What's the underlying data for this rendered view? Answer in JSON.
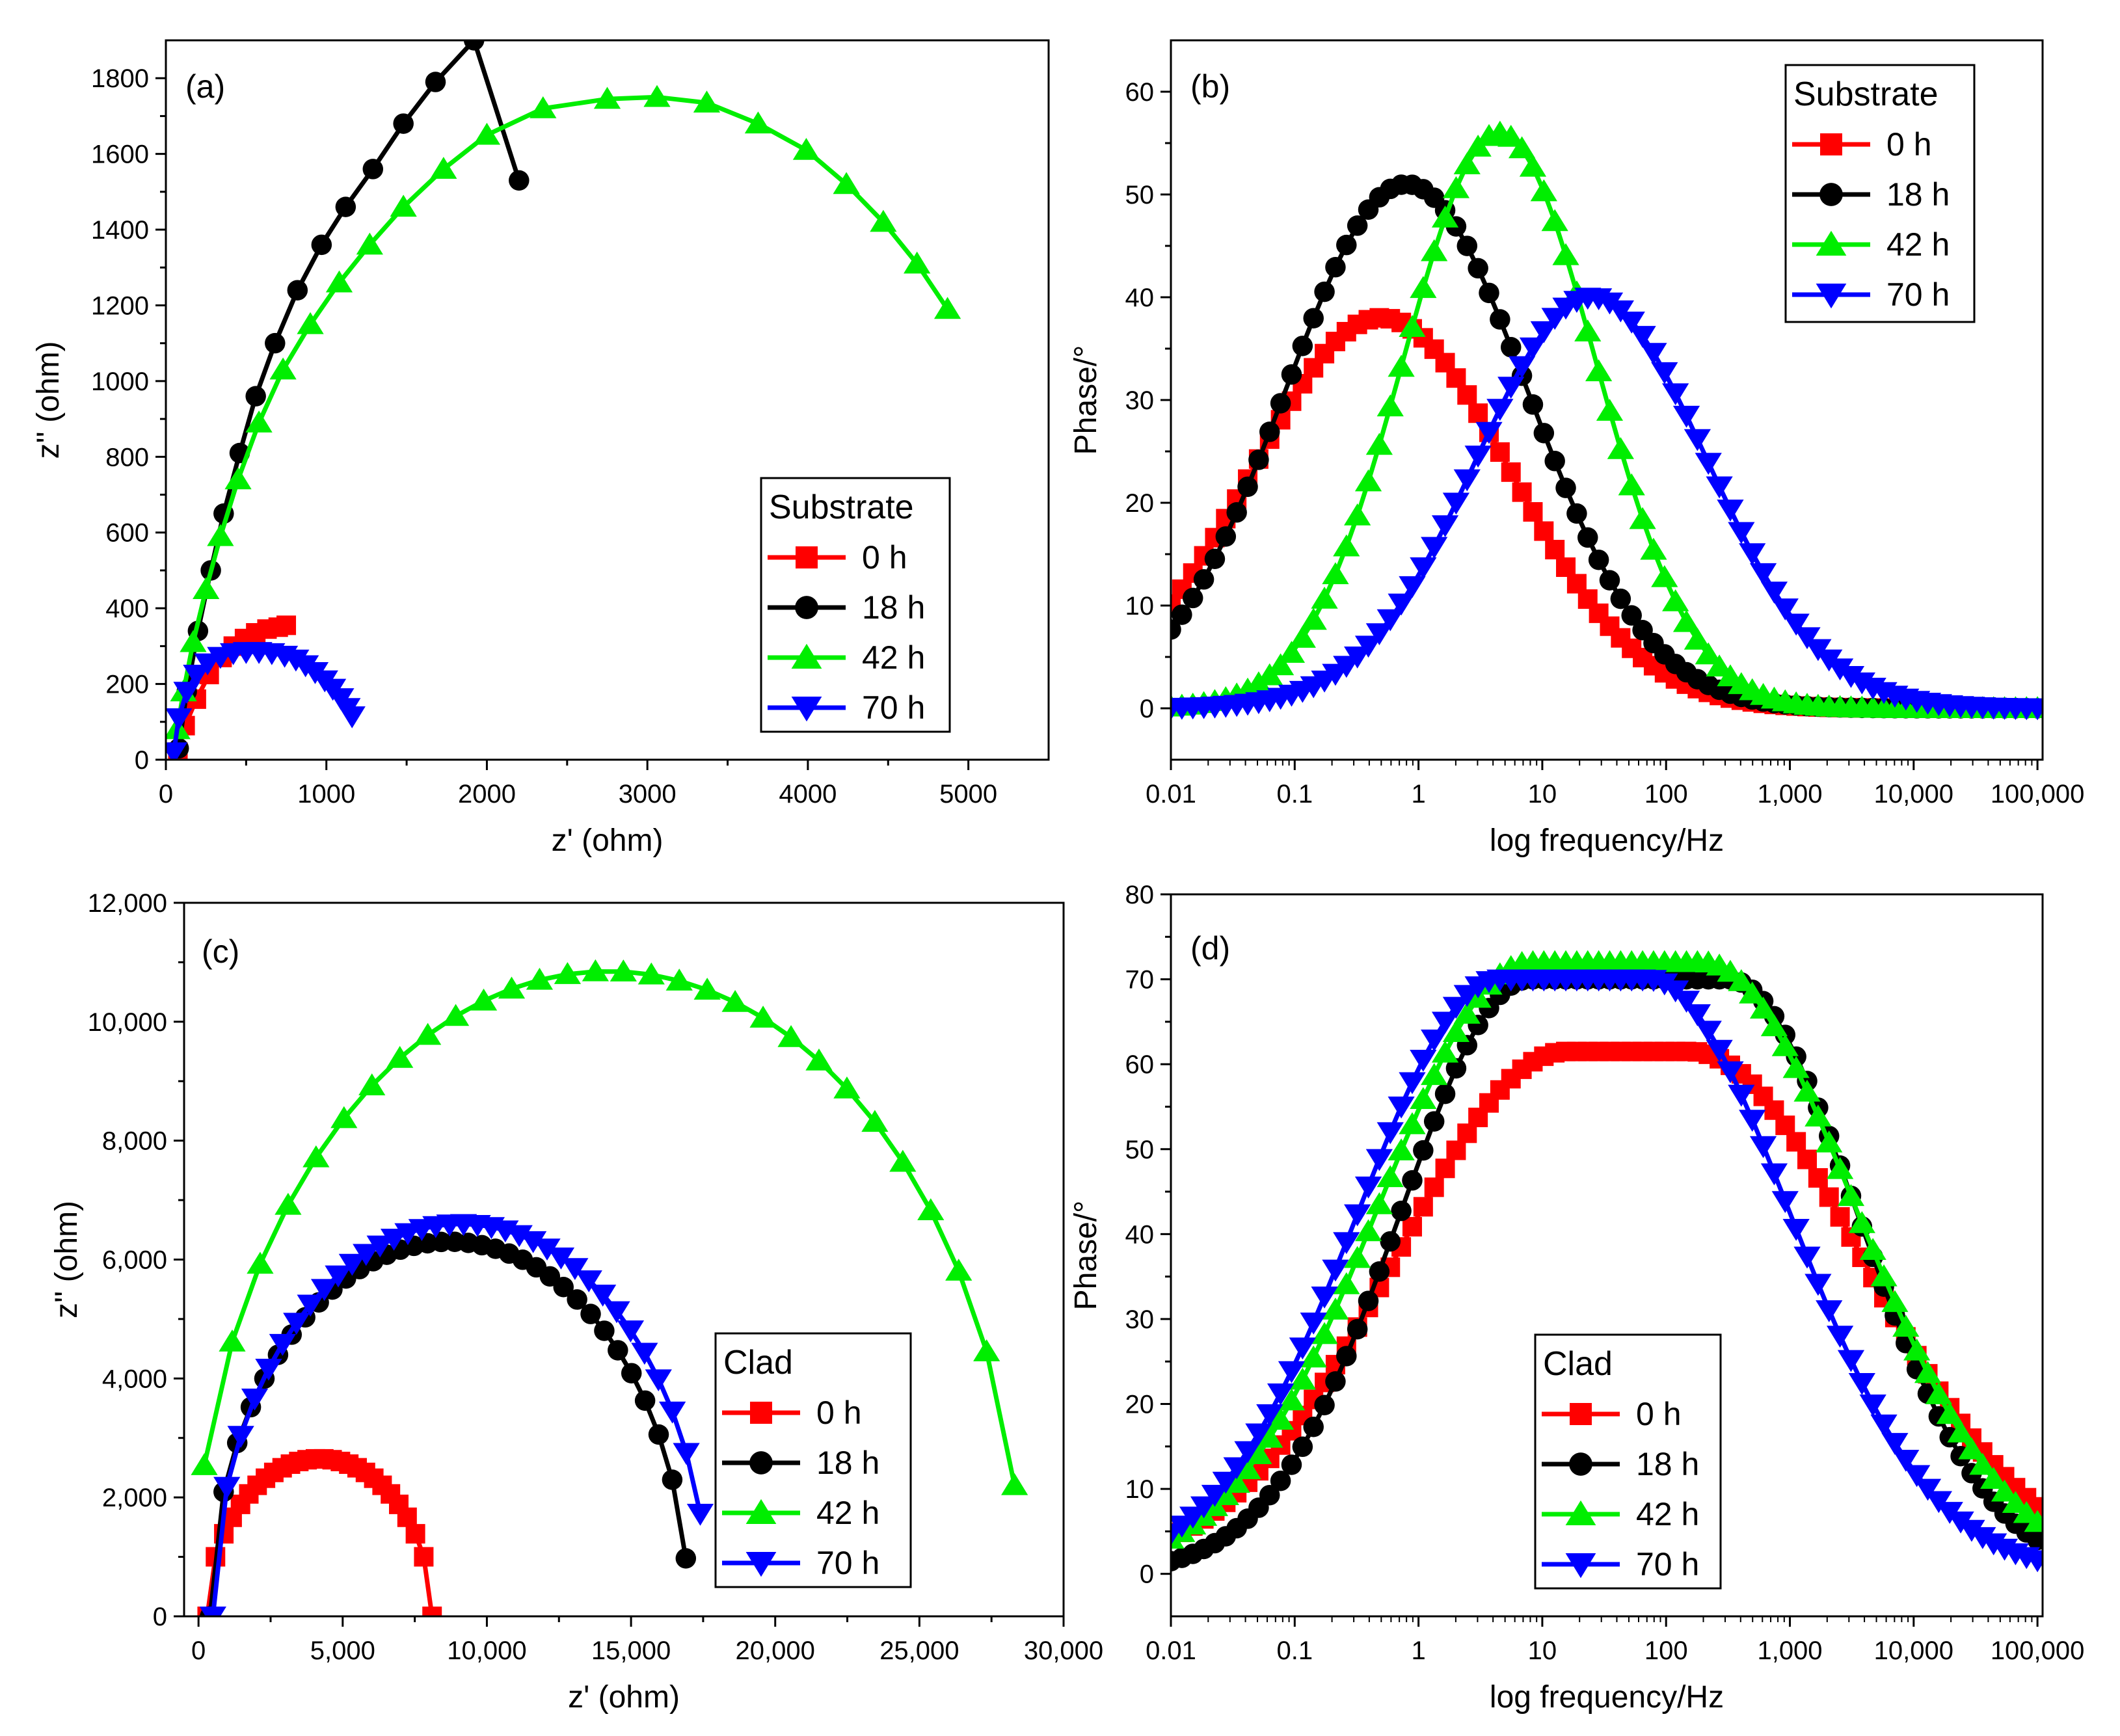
{
  "figure": {
    "panels": [
      "a",
      "b",
      "c",
      "d"
    ]
  },
  "chart_data": [
    {
      "id": "a",
      "type": "scatter",
      "panel_label": "(a)",
      "xlabel": "z' (ohm)",
      "ylabel": "z'' (ohm)",
      "xlim": [
        0,
        5500
      ],
      "ylim": [
        0,
        1900
      ],
      "xticks": [
        0,
        1000,
        2000,
        3000,
        4000,
        5000
      ],
      "xtick_labels": [
        "0",
        "1000",
        "2000",
        "3000",
        "4000",
        "5000"
      ],
      "yticks": [
        0,
        200,
        400,
        600,
        800,
        1000,
        1200,
        1400,
        1600,
        1800
      ],
      "ytick_labels": [
        "0",
        "200",
        "400",
        "600",
        "800",
        "1000",
        "1200",
        "1400",
        "1600",
        "1800"
      ],
      "legend": {
        "title": "Substrate",
        "position": "right",
        "entries": [
          "0 h",
          "18 h",
          "42 h",
          "70 h"
        ]
      },
      "series": [
        {
          "name": "0 h",
          "color": "#ff0000",
          "marker": "square",
          "points": [
            [
              75,
              20
            ],
            [
              120,
              90
            ],
            [
              190,
              160
            ],
            [
              270,
              225
            ],
            [
              350,
              270
            ],
            [
              420,
              300
            ],
            [
              490,
              320
            ],
            [
              560,
              335
            ],
            [
              630,
              345
            ],
            [
              700,
              350
            ],
            [
              750,
              355
            ]
          ]
        },
        {
          "name": "18 h",
          "color": "#000000",
          "marker": "circle",
          "points": [
            [
              80,
              30
            ],
            [
              130,
              180
            ],
            [
              200,
              340
            ],
            [
              280,
              500
            ],
            [
              360,
              650
            ],
            [
              460,
              810
            ],
            [
              560,
              960
            ],
            [
              680,
              1100
            ],
            [
              820,
              1240
            ],
            [
              970,
              1360
            ],
            [
              1120,
              1460
            ],
            [
              1290,
              1560
            ],
            [
              1480,
              1680
            ],
            [
              1680,
              1790
            ],
            [
              1920,
              1900
            ],
            [
              2200,
              1530
            ]
          ]
        },
        {
          "name": "42 h",
          "color": "#00ee00",
          "marker": "triangle-up",
          "points": [
            [
              70,
              80
            ],
            [
              110,
              180
            ],
            [
              170,
              310
            ],
            [
              250,
              450
            ],
            [
              340,
              590
            ],
            [
              450,
              740
            ],
            [
              580,
              890
            ],
            [
              730,
              1030
            ],
            [
              900,
              1150
            ],
            [
              1080,
              1260
            ],
            [
              1270,
              1360
            ],
            [
              1480,
              1460
            ],
            [
              1730,
              1560
            ],
            [
              2000,
              1650
            ],
            [
              2350,
              1720
            ],
            [
              2750,
              1745
            ],
            [
              3060,
              1750
            ],
            [
              3370,
              1735
            ],
            [
              3690,
              1680
            ],
            [
              3990,
              1610
            ],
            [
              4240,
              1520
            ],
            [
              4470,
              1420
            ],
            [
              4680,
              1310
            ],
            [
              4870,
              1190
            ]
          ]
        },
        {
          "name": "70 h",
          "color": "#0000ff",
          "marker": "triangle-down",
          "points": [
            [
              50,
              20
            ],
            [
              80,
              110
            ],
            [
              130,
              180
            ],
            [
              190,
              225
            ],
            [
              260,
              255
            ],
            [
              340,
              272
            ],
            [
              420,
              282
            ],
            [
              500,
              285
            ],
            [
              580,
              285
            ],
            [
              660,
              282
            ],
            [
              740,
              275
            ],
            [
              810,
              265
            ],
            [
              870,
              250
            ],
            [
              930,
              232
            ],
            [
              990,
              210
            ],
            [
              1040,
              188
            ],
            [
              1090,
              163
            ],
            [
              1130,
              137
            ],
            [
              1160,
              115
            ]
          ]
        }
      ]
    },
    {
      "id": "b",
      "type": "scatter",
      "panel_label": "(b)",
      "xlabel": "log frequency/Hz",
      "ylabel": "Phase/°",
      "xscale": "log",
      "xlim": [
        0.01,
        110000
      ],
      "ylim": [
        -5,
        65
      ],
      "xticks": [
        0.01,
        0.1,
        1,
        10,
        100,
        1000,
        10000,
        100000
      ],
      "xtick_labels": [
        "0.01",
        "0.1",
        "1",
        "10",
        "100",
        "1,000",
        "10,000",
        "100,000"
      ],
      "yticks": [
        0,
        10,
        20,
        30,
        40,
        50,
        60
      ],
      "ytick_labels": [
        "0",
        "10",
        "20",
        "30",
        "40",
        "50",
        "60"
      ],
      "legend": {
        "title": "Substrate",
        "position": "top-right",
        "entries": [
          "0 h",
          "18 h",
          "42 h",
          "70 h"
        ]
      },
      "series": [
        {
          "name": "0 h",
          "color": "#ff0000",
          "marker": "square",
          "gauss": {
            "peak": 38,
            "center": 0.5,
            "width": 1.55,
            "n": 80
          }
        },
        {
          "name": "18 h",
          "color": "#000000",
          "marker": "circle",
          "gauss": {
            "peak": 51,
            "center": 0.8,
            "width": 1.45,
            "n": 80
          }
        },
        {
          "name": "42 h",
          "color": "#00ee00",
          "marker": "triangle-up",
          "gauss": {
            "peak": 56,
            "center": 4.5,
            "width": 1.15,
            "n": 80
          }
        },
        {
          "name": "70 h",
          "color": "#0000ff",
          "marker": "triangle-down",
          "gauss": {
            "peak": 40,
            "center": 25,
            "width": 1.38,
            "n": 80
          }
        }
      ]
    },
    {
      "id": "c",
      "type": "scatter",
      "panel_label": "(c)",
      "xlabel": "z' (ohm)",
      "ylabel": "z'' (ohm)",
      "xlim": [
        -500,
        30000
      ],
      "ylim": [
        0,
        12000
      ],
      "xticks": [
        0,
        5000,
        10000,
        15000,
        20000,
        25000,
        30000
      ],
      "xtick_labels": [
        "0",
        "5,000",
        "10,000",
        "15,000",
        "20,000",
        "25,000",
        "30,000"
      ],
      "yticks": [
        0,
        2000,
        4000,
        6000,
        8000,
        10000,
        12000
      ],
      "ytick_labels": [
        "0",
        "2,000",
        "4,000",
        "6,000",
        "8,000",
        "10,000",
        "12,000"
      ],
      "legend": {
        "title": "Clad",
        "position": "right",
        "entries": [
          "0 h",
          "18 h",
          "42 h",
          "70 h"
        ]
      },
      "series": [
        {
          "name": "0 h",
          "color": "#ff0000",
          "marker": "square",
          "arc": {
            "cx": 4200,
            "rx": 3900,
            "ry": 2650,
            "x0": 300,
            "x1": 8100,
            "n": 28
          }
        },
        {
          "name": "18 h",
          "color": "#000000",
          "marker": "circle",
          "arc": {
            "cx": 8700,
            "rx": 8300,
            "ry": 6300,
            "x0": 400,
            "x1": 16900,
            "n": 36
          }
        },
        {
          "name": "42 h",
          "color": "#00ee00",
          "marker": "triangle-up",
          "arc": {
            "cx": 14200,
            "rx": 14400,
            "ry": 10850,
            "x0": 200,
            "x1": 28300,
            "n": 30
          }
        },
        {
          "name": "70 h",
          "color": "#0000ff",
          "marker": "triangle-down",
          "arc": {
            "cx": 9100,
            "rx": 8600,
            "ry": 6600,
            "x0": 500,
            "x1": 17400,
            "n": 36
          }
        }
      ]
    },
    {
      "id": "d",
      "type": "scatter",
      "panel_label": "(d)",
      "xlabel": "log frequency/Hz",
      "ylabel": "Phase/°",
      "xscale": "log",
      "xlim": [
        0.01,
        110000
      ],
      "ylim": [
        -5,
        80
      ],
      "xticks": [
        0.01,
        0.1,
        1,
        10,
        100,
        1000,
        10000,
        100000
      ],
      "xtick_labels": [
        "0.01",
        "0.1",
        "1",
        "10",
        "100",
        "1,000",
        "10,000",
        "100,000"
      ],
      "yticks": [
        0,
        10,
        20,
        30,
        40,
        50,
        60,
        70,
        80
      ],
      "ytick_labels": [
        "0",
        "10",
        "20",
        "30",
        "40",
        "50",
        "60",
        "70",
        "80"
      ],
      "legend": {
        "title": "Clad",
        "position": "bottom-center",
        "entries": [
          "0 h",
          "18 h",
          "42 h",
          "70 h"
        ]
      },
      "series": [
        {
          "name": "0 h",
          "color": "#ff0000",
          "marker": "square",
          "gauss": {
            "peak": 61.5,
            "center": 50,
            "width": 2.05,
            "flat": 0.5,
            "n": 80
          }
        },
        {
          "name": "18 h",
          "color": "#000000",
          "marker": "circle",
          "gauss": {
            "peak": 70,
            "center": 50,
            "width": 1.55,
            "flat": 0.8,
            "n": 80
          }
        },
        {
          "name": "42 h",
          "color": "#00ee00",
          "marker": "triangle-up",
          "gauss": {
            "peak": 72,
            "center": 40,
            "width": 1.8,
            "flat": 0.7,
            "n": 80
          }
        },
        {
          "name": "70 h",
          "color": "#0000ff",
          "marker": "triangle-down",
          "gauss": {
            "peak": 70,
            "center": 18,
            "width": 1.7,
            "flat": 0.6,
            "n": 80
          }
        }
      ]
    }
  ]
}
